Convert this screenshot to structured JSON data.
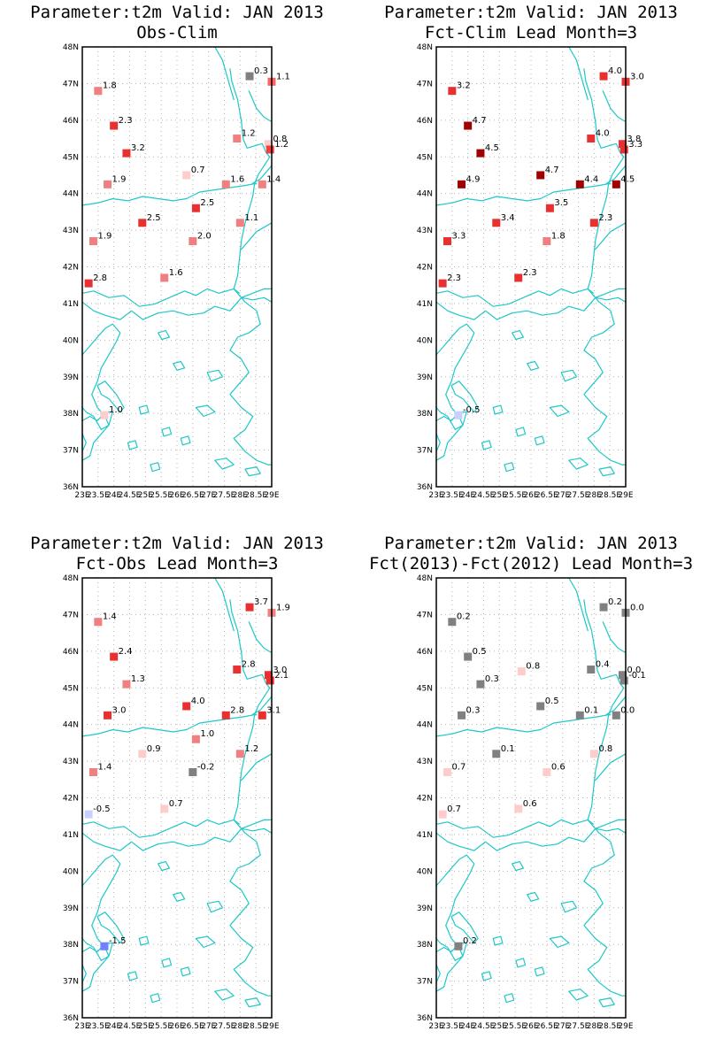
{
  "panels": [
    {
      "title1": "Parameter:t2m Valid: JAN 2013",
      "title2": "Obs-Clim",
      "stations": [
        {
          "lon": 28.3,
          "lat": 47.2,
          "val": "0.3",
          "color": "#808080"
        },
        {
          "lon": 29.0,
          "lat": 47.05,
          "val": "1.1",
          "color": "#ff6060"
        },
        {
          "lon": 23.5,
          "lat": 46.8,
          "val": "1.8",
          "color": "#f08080"
        },
        {
          "lon": 24.0,
          "lat": 45.85,
          "val": "2.3",
          "color": "#e83030"
        },
        {
          "lon": 27.9,
          "lat": 45.5,
          "val": "1.2",
          "color": "#f08080"
        },
        {
          "lon": 28.9,
          "lat": 45.35,
          "val": "0.8",
          "color": "#ffcccc"
        },
        {
          "lon": 24.4,
          "lat": 45.1,
          "val": "3.2",
          "color": "#e83030"
        },
        {
          "lon": 28.95,
          "lat": 45.2,
          "val": "1.2",
          "color": "#f04040"
        },
        {
          "lon": 26.3,
          "lat": 44.5,
          "val": "0.7",
          "color": "#ffcccc"
        },
        {
          "lon": 23.8,
          "lat": 44.25,
          "val": "1.9",
          "color": "#f08080"
        },
        {
          "lon": 27.55,
          "lat": 44.25,
          "val": "1.6",
          "color": "#f08080"
        },
        {
          "lon": 28.7,
          "lat": 44.25,
          "val": "1.4",
          "color": "#f08080"
        },
        {
          "lon": 26.6,
          "lat": 43.6,
          "val": "2.5",
          "color": "#e83030"
        },
        {
          "lon": 24.9,
          "lat": 43.2,
          "val": "2.5",
          "color": "#e83030"
        },
        {
          "lon": 28.0,
          "lat": 43.2,
          "val": "1.1",
          "color": "#f08080"
        },
        {
          "lon": 23.35,
          "lat": 42.7,
          "val": "1.9",
          "color": "#f08080"
        },
        {
          "lon": 26.5,
          "lat": 42.7,
          "val": "2.0",
          "color": "#f08080"
        },
        {
          "lon": 25.6,
          "lat": 41.7,
          "val": "1.6",
          "color": "#f08080"
        },
        {
          "lon": 23.2,
          "lat": 41.55,
          "val": "2.8",
          "color": "#e83030"
        },
        {
          "lon": 23.7,
          "lat": 37.95,
          "val": "1.0",
          "color": "#ffcccc"
        }
      ]
    },
    {
      "title1": "Parameter:t2m Valid: JAN 2013",
      "title2": "Fct-Clim Lead Month=3",
      "stations": [
        {
          "lon": 28.3,
          "lat": 47.2,
          "val": "4.0",
          "color": "#e83030"
        },
        {
          "lon": 29.0,
          "lat": 47.05,
          "val": "3.0",
          "color": "#e83030"
        },
        {
          "lon": 23.5,
          "lat": 46.8,
          "val": "3.2",
          "color": "#e83030"
        },
        {
          "lon": 24.0,
          "lat": 45.85,
          "val": "4.7",
          "color": "#a00000"
        },
        {
          "lon": 27.9,
          "lat": 45.5,
          "val": "4.0",
          "color": "#e83030"
        },
        {
          "lon": 28.9,
          "lat": 45.35,
          "val": "3.8",
          "color": "#e83030"
        },
        {
          "lon": 24.4,
          "lat": 45.1,
          "val": "4.5",
          "color": "#a00000"
        },
        {
          "lon": 28.95,
          "lat": 45.2,
          "val": "3.3",
          "color": "#e83030"
        },
        {
          "lon": 26.3,
          "lat": 44.5,
          "val": "4.7",
          "color": "#a00000"
        },
        {
          "lon": 23.8,
          "lat": 44.25,
          "val": "4.9",
          "color": "#a00000"
        },
        {
          "lon": 27.55,
          "lat": 44.25,
          "val": "4.4",
          "color": "#a00000"
        },
        {
          "lon": 28.7,
          "lat": 44.25,
          "val": "4.5",
          "color": "#a00000"
        },
        {
          "lon": 26.6,
          "lat": 43.6,
          "val": "3.5",
          "color": "#e83030"
        },
        {
          "lon": 24.9,
          "lat": 43.2,
          "val": "3.4",
          "color": "#e83030"
        },
        {
          "lon": 28.0,
          "lat": 43.2,
          "val": "2.3",
          "color": "#e83030"
        },
        {
          "lon": 23.35,
          "lat": 42.7,
          "val": "3.3",
          "color": "#e83030"
        },
        {
          "lon": 26.5,
          "lat": 42.7,
          "val": "1.8",
          "color": "#f08080"
        },
        {
          "lon": 25.6,
          "lat": 41.7,
          "val": "2.3",
          "color": "#e83030"
        },
        {
          "lon": 23.2,
          "lat": 41.55,
          "val": "2.3",
          "color": "#e83030"
        },
        {
          "lon": 23.7,
          "lat": 37.95,
          "val": "-0.5",
          "color": "#c8d0ff"
        }
      ]
    },
    {
      "title1": "Parameter:t2m Valid: JAN 2013",
      "title2": "Fct-Obs Lead Month=3",
      "stations": [
        {
          "lon": 28.3,
          "lat": 47.2,
          "val": "3.7",
          "color": "#e83030"
        },
        {
          "lon": 29.0,
          "lat": 47.05,
          "val": "1.9",
          "color": "#f08080"
        },
        {
          "lon": 23.5,
          "lat": 46.8,
          "val": "1.4",
          "color": "#f08080"
        },
        {
          "lon": 24.0,
          "lat": 45.85,
          "val": "2.4",
          "color": "#e83030"
        },
        {
          "lon": 27.9,
          "lat": 45.5,
          "val": "2.8",
          "color": "#e83030"
        },
        {
          "lon": 28.9,
          "lat": 45.35,
          "val": "3.0",
          "color": "#e83030"
        },
        {
          "lon": 24.4,
          "lat": 45.1,
          "val": "1.3",
          "color": "#f08080"
        },
        {
          "lon": 28.95,
          "lat": 45.2,
          "val": "2.1",
          "color": "#e83030"
        },
        {
          "lon": 26.3,
          "lat": 44.5,
          "val": "4.0",
          "color": "#e83030"
        },
        {
          "lon": 23.8,
          "lat": 44.25,
          "val": "3.0",
          "color": "#e83030"
        },
        {
          "lon": 27.55,
          "lat": 44.25,
          "val": "2.8",
          "color": "#e83030"
        },
        {
          "lon": 28.7,
          "lat": 44.25,
          "val": "3.1",
          "color": "#e83030"
        },
        {
          "lon": 26.6,
          "lat": 43.6,
          "val": "1.0",
          "color": "#f08080"
        },
        {
          "lon": 24.9,
          "lat": 43.2,
          "val": "0.9",
          "color": "#ffcccc"
        },
        {
          "lon": 28.0,
          "lat": 43.2,
          "val": "1.2",
          "color": "#f08080"
        },
        {
          "lon": 23.35,
          "lat": 42.7,
          "val": "1.4",
          "color": "#f08080"
        },
        {
          "lon": 26.5,
          "lat": 42.7,
          "val": "-0.2",
          "color": "#808080"
        },
        {
          "lon": 25.6,
          "lat": 41.7,
          "val": "0.7",
          "color": "#ffcccc"
        },
        {
          "lon": 23.2,
          "lat": 41.55,
          "val": "-0.5",
          "color": "#c8d0ff"
        },
        {
          "lon": 23.7,
          "lat": 37.95,
          "val": "-1.5",
          "color": "#7080ff"
        }
      ]
    },
    {
      "title1": "Parameter:t2m Valid: JAN 2013",
      "title2": "Fct(2013)-Fct(2012) Lead Month=3",
      "stations": [
        {
          "lon": 28.3,
          "lat": 47.2,
          "val": "0.2",
          "color": "#808080"
        },
        {
          "lon": 29.0,
          "lat": 47.05,
          "val": "0.0",
          "color": "#808080"
        },
        {
          "lon": 23.5,
          "lat": 46.8,
          "val": "0.2",
          "color": "#808080"
        },
        {
          "lon": 24.0,
          "lat": 45.85,
          "val": "0.5",
          "color": "#808080"
        },
        {
          "lon": 25.7,
          "lat": 45.45,
          "val": "0.8",
          "color": "#ffcccc"
        },
        {
          "lon": 27.9,
          "lat": 45.5,
          "val": "0.4",
          "color": "#808080"
        },
        {
          "lon": 28.9,
          "lat": 45.35,
          "val": "0.0",
          "color": "#808080"
        },
        {
          "lon": 24.4,
          "lat": 45.1,
          "val": "0.3",
          "color": "#808080"
        },
        {
          "lon": 28.95,
          "lat": 45.2,
          "val": "-0.1",
          "color": "#808080"
        },
        {
          "lon": 26.3,
          "lat": 44.5,
          "val": "0.5",
          "color": "#808080"
        },
        {
          "lon": 23.8,
          "lat": 44.25,
          "val": "0.3",
          "color": "#808080"
        },
        {
          "lon": 27.55,
          "lat": 44.25,
          "val": "0.1",
          "color": "#808080"
        },
        {
          "lon": 28.7,
          "lat": 44.25,
          "val": "0.0",
          "color": "#808080"
        },
        {
          "lon": 24.9,
          "lat": 43.2,
          "val": "0.1",
          "color": "#808080"
        },
        {
          "lon": 28.0,
          "lat": 43.2,
          "val": "0.8",
          "color": "#ffcccc"
        },
        {
          "lon": 23.35,
          "lat": 42.7,
          "val": "0.7",
          "color": "#ffcccc"
        },
        {
          "lon": 26.5,
          "lat": 42.7,
          "val": "0.6",
          "color": "#ffcccc"
        },
        {
          "lon": 25.6,
          "lat": 41.7,
          "val": "0.6",
          "color": "#ffcccc"
        },
        {
          "lon": 23.2,
          "lat": 41.55,
          "val": "0.7",
          "color": "#ffcccc"
        },
        {
          "lon": 23.7,
          "lat": 37.95,
          "val": "0.2",
          "color": "#808080"
        }
      ]
    }
  ],
  "axes": {
    "lat_labels": [
      "48N",
      "47N",
      "46N",
      "45N",
      "44N",
      "43N",
      "42N",
      "41N",
      "40N",
      "39N",
      "38N",
      "37N",
      "36N"
    ],
    "lon_labels": [
      "23E",
      "23.5E",
      "24E",
      "24.5E",
      "25E",
      "25.5E",
      "26E",
      "26.5E",
      "27E",
      "27.5E",
      "28E",
      "28.5E",
      "29E"
    ],
    "lat_range": [
      36,
      48
    ],
    "lon_range": [
      23,
      29
    ]
  },
  "colors": {
    "coastline": "#1ec8c8",
    "grid": "#b4b4b4"
  }
}
